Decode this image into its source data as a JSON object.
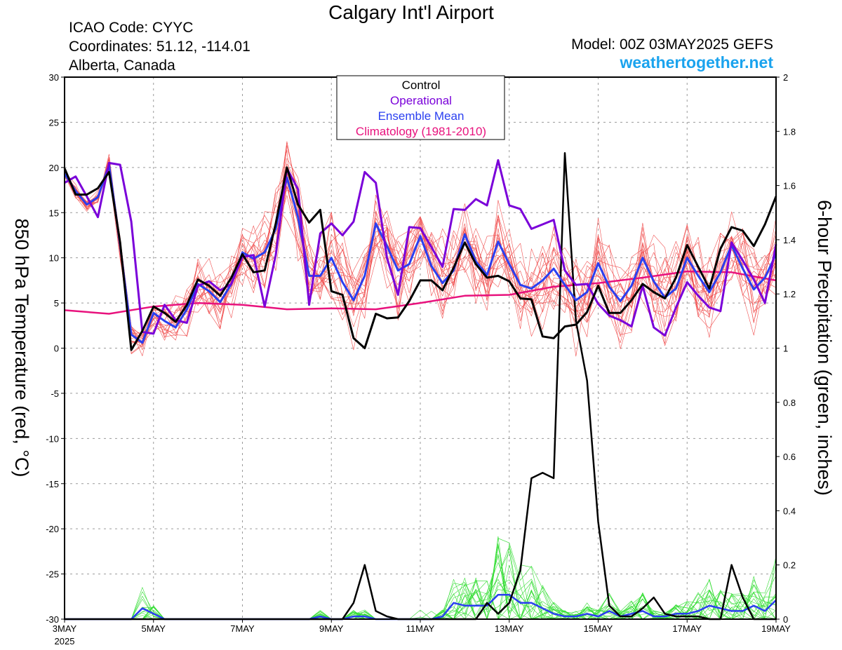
{
  "header": {
    "title": "Calgary Int'l Airport",
    "icao": "ICAO Code: CYYC",
    "coordinates": "Coordinates: 51.12, -114.01",
    "region": "Alberta, Canada",
    "model": "Model: 00Z 03MAY2025 GEFS",
    "site": "weathertogether.net"
  },
  "colors": {
    "control": "#000000",
    "operational": "#7a00d9",
    "mean": "#2a3ff0",
    "climatology": "#e8127d",
    "members_temp": "#f05050",
    "members_precip": "#33dd33",
    "site": "#1aa3ee"
  },
  "chart_data": {
    "type": "line",
    "ylabel_left": "850 hPa Temperature (red, °C)",
    "ylabel_right": "6-hour Precipitation (green, inches)",
    "ylim_left": [
      -30,
      30
    ],
    "ylim_right": [
      0,
      2
    ],
    "yticks_left": [
      "30",
      "25",
      "20",
      "15",
      "10",
      "5",
      "0",
      "-5",
      "-10",
      "-15",
      "-20",
      "-25",
      "-30"
    ],
    "yticks_right": [
      "2",
      "1.8",
      "1.6",
      "1.4",
      "1.2",
      "1",
      "0.8",
      "0.6",
      "0.4",
      "0.2",
      "0"
    ],
    "xticks": [
      {
        "day": 0,
        "label": "3MAY",
        "sub": "2025"
      },
      {
        "day": 2,
        "label": "5MAY"
      },
      {
        "day": 4,
        "label": "7MAY"
      },
      {
        "day": 6,
        "label": "9MAY"
      },
      {
        "day": 8,
        "label": "11MAY"
      },
      {
        "day": 10,
        "label": "13MAY"
      },
      {
        "day": 12,
        "label": "15MAY"
      },
      {
        "day": 14,
        "label": "17MAY"
      },
      {
        "day": 16,
        "label": "19MAY"
      }
    ],
    "grid": true,
    "legend": {
      "placement": "top-center",
      "entries": [
        {
          "key": "control",
          "label": "Control"
        },
        {
          "key": "operational",
          "label": "Operational"
        },
        {
          "key": "mean",
          "label": "Ensemble Mean"
        },
        {
          "key": "climatology",
          "label": "Climatology (1981-2010)"
        }
      ]
    },
    "temperature": {
      "control": [
        19.9,
        17.0,
        17.0,
        17.7,
        19.5,
        11.7,
        -0.2,
        1.9,
        4.6,
        3.9,
        2.9,
        4.8,
        7.6,
        6.9,
        5.8,
        7.8,
        10.4,
        8.4,
        8.6,
        13.8,
        20.0,
        15.9,
        13.9,
        15.3,
        6.3,
        5.9,
        1.1,
        0.0,
        3.8,
        3.3,
        3.4,
        5.2,
        7.5,
        7.5,
        6.4,
        8.9,
        11.7,
        9.3,
        7.8,
        8.0,
        7.4,
        5.5,
        5.4,
        1.3,
        1.1,
        2.4,
        2.6,
        4.0,
        6.9,
        3.9,
        3.9,
        5.3,
        7.1,
        6.2,
        5.5,
        7.8,
        11.4,
        9.0,
        6.6,
        11.0,
        13.4,
        13.0,
        11.3,
        13.7,
        16.8
      ],
      "operational": [
        18.3,
        19.0,
        16.8,
        14.5,
        20.5,
        20.3,
        14.0,
        1.8,
        1.6,
        4.8,
        3.1,
        2.8,
        6.9,
        7.4,
        6.4,
        7.1,
        10.1,
        10.3,
        4.6,
        10.3,
        19.9,
        17.6,
        4.8,
        12.7,
        13.8,
        12.5,
        14.0,
        19.5,
        18.3,
        10.0,
        5.9,
        13.4,
        13.3,
        11.2,
        9.0,
        15.4,
        15.3,
        16.5,
        15.8,
        20.8,
        15.8,
        15.4,
        13.2,
        13.7,
        14.2,
        8.6,
        7.0,
        7.1,
        4.9,
        3.6,
        3.1,
        2.4,
        6.9,
        2.3,
        1.4,
        4.5,
        7.3,
        5.8,
        4.5,
        4.1,
        11.7,
        9.7,
        7.6,
        5.0,
        11.5
      ],
      "mean": [
        19.3,
        17.4,
        15.9,
        16.7,
        20.3,
        11.4,
        1.5,
        0.6,
        3.9,
        3.0,
        2.3,
        4.3,
        7.1,
        6.3,
        5.1,
        7.1,
        10.6,
        9.9,
        10.6,
        13.2,
        18.9,
        14.5,
        8.0,
        8.0,
        10.0,
        7.3,
        5.3,
        8.0,
        13.8,
        11.3,
        8.6,
        9.3,
        12.4,
        9.1,
        7.2,
        8.6,
        12.6,
        9.6,
        8.1,
        11.8,
        9.3,
        7.0,
        6.6,
        7.5,
        8.8,
        7.0,
        5.3,
        6.2,
        9.4,
        6.8,
        5.2,
        6.9,
        10.0,
        7.4,
        5.6,
        6.6,
        10.0,
        8.0,
        6.2,
        8.4,
        11.4,
        8.8,
        6.5,
        7.8,
        10.4
      ],
      "climatology": [
        [
          0,
          4.2
        ],
        [
          1,
          3.8
        ],
        [
          2,
          4.6
        ],
        [
          3,
          5.0
        ],
        [
          4,
          4.8
        ],
        [
          5,
          4.3
        ],
        [
          6,
          4.4
        ],
        [
          7,
          4.3
        ],
        [
          8,
          5.0
        ],
        [
          9,
          5.8
        ],
        [
          10,
          5.9
        ],
        [
          11,
          6.8
        ],
        [
          12,
          7.2
        ],
        [
          13,
          7.8
        ],
        [
          14,
          8.5
        ],
        [
          15,
          8.4
        ],
        [
          16,
          7.5
        ]
      ],
      "members_count": 20
    },
    "precipitation": {
      "control": [
        0,
        0,
        0,
        0,
        0,
        0,
        0,
        0,
        0,
        0,
        0,
        0,
        0,
        0,
        0,
        0,
        0,
        0,
        0,
        0,
        0,
        0,
        0,
        0,
        0,
        0,
        0.06,
        0.2,
        0.03,
        0.01,
        0,
        0,
        0,
        0,
        0,
        0,
        0,
        0,
        0.06,
        0.02,
        0.06,
        0.18,
        0.52,
        0.54,
        0.52,
        1.72,
        1.1,
        0.88,
        0.36,
        0.05,
        0.01,
        0.01,
        0.04,
        0.08,
        0.02,
        0.01,
        0.01,
        0.01,
        0,
        0,
        0.2,
        0.08,
        0,
        0,
        0
      ],
      "mean": [
        0,
        0,
        0,
        0,
        0,
        0,
        0,
        0.04,
        0.02,
        0,
        0,
        0,
        0,
        0,
        0,
        0,
        0,
        0,
        0,
        0,
        0,
        0,
        0,
        0.01,
        0,
        0,
        0.01,
        0.01,
        0,
        0,
        0,
        0,
        0,
        0,
        0.01,
        0.06,
        0.05,
        0.05,
        0.05,
        0.09,
        0.09,
        0.06,
        0.06,
        0.04,
        0.02,
        0.01,
        0.01,
        0.02,
        0.01,
        0.03,
        0.01,
        0.02,
        0.03,
        0.01,
        0.01,
        0.02,
        0.02,
        0.03,
        0.05,
        0.04,
        0.03,
        0.03,
        0.05,
        0.03,
        0.07
      ],
      "members_count": 20
    }
  }
}
